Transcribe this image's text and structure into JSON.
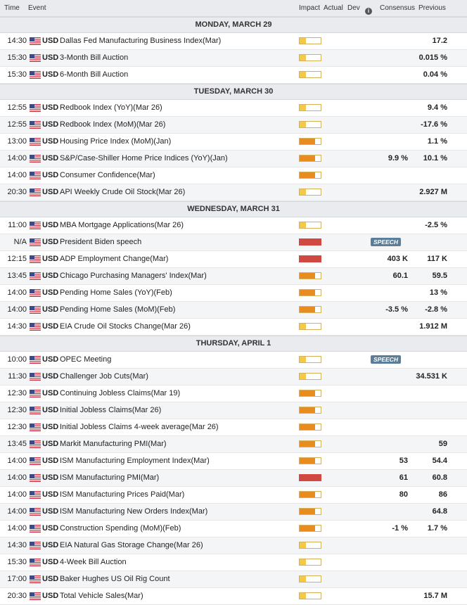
{
  "header": {
    "time": "Time",
    "event": "Event",
    "impact": "Impact",
    "actual": "Actual",
    "dev": "Dev",
    "consensus": "Consensus",
    "previous": "Previous"
  },
  "colors": {
    "low": "#f3c94c",
    "medium": "#e98c1f",
    "high": "#d0483f"
  },
  "days": [
    {
      "label": "MONDAY, MARCH 29",
      "rows": [
        {
          "time": "14:30",
          "currency": "USD",
          "event": "Dallas Fed Manufacturing Business Index(Mar)",
          "impact": "low",
          "consensus": "",
          "previous": "17.2"
        },
        {
          "time": "15:30",
          "currency": "USD",
          "event": "3-Month Bill Auction",
          "impact": "low",
          "consensus": "",
          "previous": "0.015 %"
        },
        {
          "time": "15:30",
          "currency": "USD",
          "event": "6-Month Bill Auction",
          "impact": "low",
          "consensus": "",
          "previous": "0.04 %"
        }
      ]
    },
    {
      "label": "TUESDAY, MARCH 30",
      "rows": [
        {
          "time": "12:55",
          "currency": "USD",
          "event": "Redbook Index (YoY)(Mar 26)",
          "impact": "low",
          "consensus": "",
          "previous": "9.4 %"
        },
        {
          "time": "12:55",
          "currency": "USD",
          "event": "Redbook Index (MoM)(Mar 26)",
          "impact": "low",
          "consensus": "",
          "previous": "-17.6 %"
        },
        {
          "time": "13:00",
          "currency": "USD",
          "event": "Housing Price Index (MoM)(Jan)",
          "impact": "medium",
          "consensus": "",
          "previous": "1.1 %"
        },
        {
          "time": "14:00",
          "currency": "USD",
          "event": "S&P/Case-Shiller Home Price Indices (YoY)(Jan)",
          "impact": "medium",
          "consensus": "9.9 %",
          "previous": "10.1 %"
        },
        {
          "time": "14:00",
          "currency": "USD",
          "event": "Consumer Confidence(Mar)",
          "impact": "medium",
          "consensus": "",
          "previous": ""
        },
        {
          "time": "20:30",
          "currency": "USD",
          "event": "API Weekly Crude Oil Stock(Mar 26)",
          "impact": "low",
          "consensus": "",
          "previous": "2.927 M"
        }
      ]
    },
    {
      "label": "WEDNESDAY, MARCH 31",
      "rows": [
        {
          "time": "11:00",
          "currency": "USD",
          "event": "MBA Mortgage Applications(Mar 26)",
          "impact": "low",
          "consensus": "",
          "previous": "-2.5 %"
        },
        {
          "time": "N/A",
          "currency": "USD",
          "event": "President Biden speech",
          "impact": "high",
          "speech": "SPEECH",
          "consensus": "",
          "previous": ""
        },
        {
          "time": "12:15",
          "currency": "USD",
          "event": "ADP Employment Change(Mar)",
          "impact": "high",
          "consensus": "403 K",
          "previous": "117 K"
        },
        {
          "time": "13:45",
          "currency": "USD",
          "event": "Chicago Purchasing Managers' Index(Mar)",
          "impact": "medium",
          "consensus": "60.1",
          "previous": "59.5"
        },
        {
          "time": "14:00",
          "currency": "USD",
          "event": "Pending Home Sales (YoY)(Feb)",
          "impact": "medium",
          "consensus": "",
          "previous": "13 %"
        },
        {
          "time": "14:00",
          "currency": "USD",
          "event": "Pending Home Sales (MoM)(Feb)",
          "impact": "medium",
          "consensus": "-3.5 %",
          "previous": "-2.8 %"
        },
        {
          "time": "14:30",
          "currency": "USD",
          "event": "EIA Crude Oil Stocks Change(Mar 26)",
          "impact": "low",
          "consensus": "",
          "previous": "1.912 M"
        }
      ]
    },
    {
      "label": "THURSDAY, APRIL 1",
      "rows": [
        {
          "time": "10:00",
          "currency": "USD",
          "event": "OPEC Meeting",
          "impact": "low",
          "speech": "SPEECH",
          "consensus": "",
          "previous": ""
        },
        {
          "time": "11:30",
          "currency": "USD",
          "event": "Challenger Job Cuts(Mar)",
          "impact": "low",
          "consensus": "",
          "previous": "34.531 K"
        },
        {
          "time": "12:30",
          "currency": "USD",
          "event": "Continuing Jobless Claims(Mar 19)",
          "impact": "medium",
          "consensus": "",
          "previous": ""
        },
        {
          "time": "12:30",
          "currency": "USD",
          "event": "Initial Jobless Claims(Mar 26)",
          "impact": "medium",
          "consensus": "",
          "previous": ""
        },
        {
          "time": "12:30",
          "currency": "USD",
          "event": "Initial Jobless Claims 4-week average(Mar 26)",
          "impact": "medium",
          "consensus": "",
          "previous": ""
        },
        {
          "time": "13:45",
          "currency": "USD",
          "event": "Markit Manufacturing PMI(Mar)",
          "impact": "medium",
          "consensus": "",
          "previous": "59"
        },
        {
          "time": "14:00",
          "currency": "USD",
          "event": "ISM Manufacturing Employment Index(Mar)",
          "impact": "medium",
          "consensus": "53",
          "previous": "54.4"
        },
        {
          "time": "14:00",
          "currency": "USD",
          "event": "ISM Manufacturing PMI(Mar)",
          "impact": "high",
          "consensus": "61",
          "previous": "60.8"
        },
        {
          "time": "14:00",
          "currency": "USD",
          "event": "ISM Manufacturing Prices Paid(Mar)",
          "impact": "medium",
          "consensus": "80",
          "previous": "86"
        },
        {
          "time": "14:00",
          "currency": "USD",
          "event": "ISM Manufacturing New Orders Index(Mar)",
          "impact": "medium",
          "consensus": "",
          "previous": "64.8"
        },
        {
          "time": "14:00",
          "currency": "USD",
          "event": "Construction Spending (MoM)(Feb)",
          "impact": "medium",
          "consensus": "-1 %",
          "previous": "1.7 %"
        },
        {
          "time": "14:30",
          "currency": "USD",
          "event": "EIA Natural Gas Storage Change(Mar 26)",
          "impact": "low",
          "consensus": "",
          "previous": ""
        },
        {
          "time": "15:30",
          "currency": "USD",
          "event": "4-Week Bill Auction",
          "impact": "low",
          "consensus": "",
          "previous": ""
        },
        {
          "time": "17:00",
          "currency": "USD",
          "event": "Baker Hughes US Oil Rig Count",
          "impact": "low",
          "consensus": "",
          "previous": ""
        },
        {
          "time": "20:30",
          "currency": "USD",
          "event": "Total Vehicle Sales(Mar)",
          "impact": "low",
          "consensus": "",
          "previous": "15.7 M"
        }
      ]
    }
  ]
}
